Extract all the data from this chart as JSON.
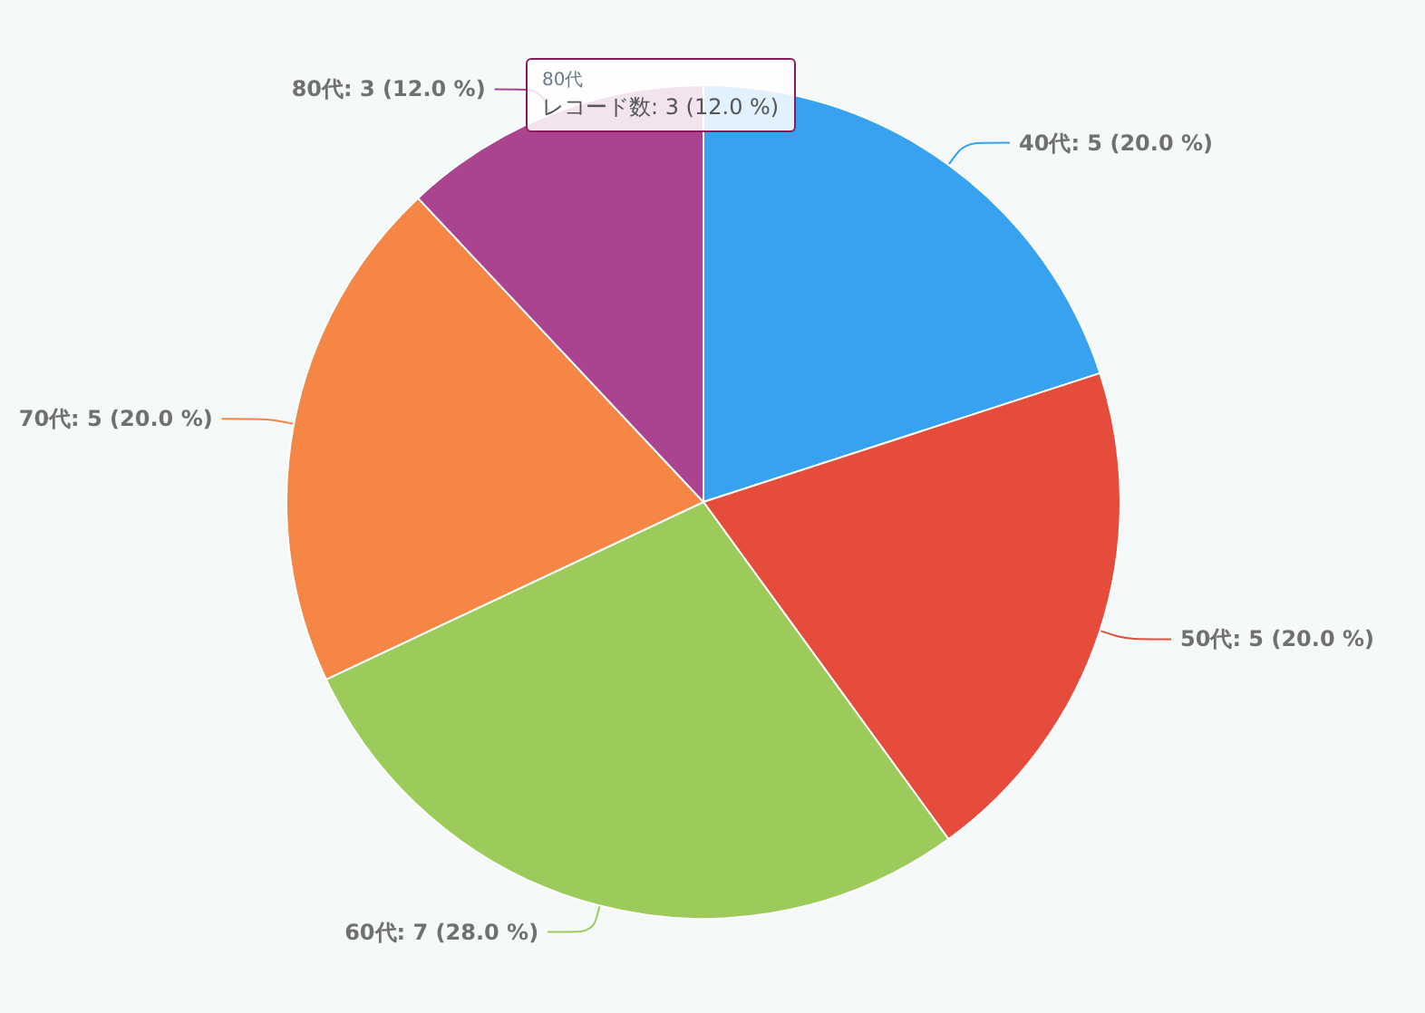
{
  "chart_data": {
    "type": "pie",
    "categories": [
      "40代",
      "50代",
      "60代",
      "70代",
      "80代"
    ],
    "values": [
      5,
      5,
      7,
      5,
      3
    ],
    "value_labels": [
      ": 5 (20.0 %)",
      ": 5 (20.0 %)",
      ": 7 (28.0 %)",
      ": 5 (20.0 %)",
      ": 3 (12.0 %)"
    ],
    "colors": [
      "#36a2f0",
      "#e54c3c",
      "#9ccb5c",
      "#f58646",
      "#aa4490"
    ],
    "annotations": [
      "80代",
      "レコード数: 3 (12.0 %)"
    ]
  }
}
